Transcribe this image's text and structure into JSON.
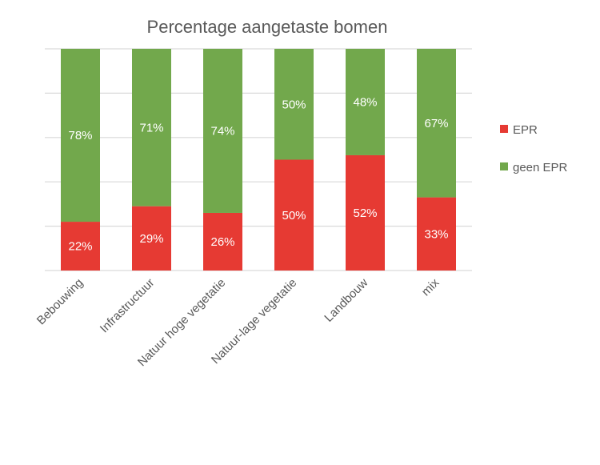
{
  "chart_data": {
    "type": "bar",
    "stacked": true,
    "percent_stacked": true,
    "title": "Percentage aangetaste bomen",
    "xlabel": "",
    "ylabel": "",
    "ylim": [
      0,
      100
    ],
    "grid": true,
    "legend_position": "right",
    "categories": [
      "Bebouwing",
      "Infrastructuur",
      "Natuur hoge vegetatie",
      "Natuur-lage vegetatie",
      "Landbouw",
      "mix"
    ],
    "series": [
      {
        "name": "EPR",
        "color": "#E63A33",
        "values": [
          22,
          29,
          26,
          50,
          52,
          33
        ]
      },
      {
        "name": "geen EPR",
        "color": "#72A84C",
        "values": [
          78,
          71,
          74,
          50,
          48,
          67
        ]
      }
    ],
    "data_label_format": "{v}%"
  }
}
